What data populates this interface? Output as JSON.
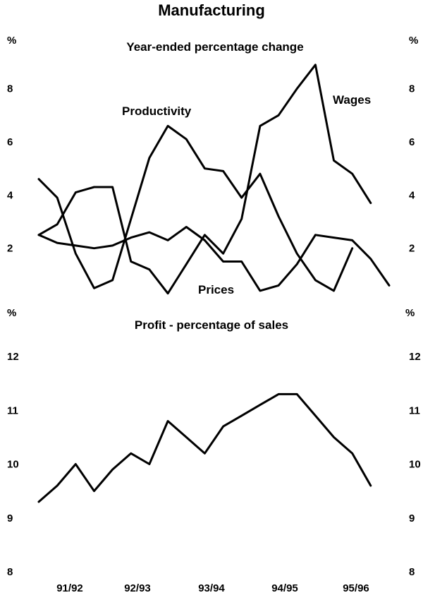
{
  "title": "Manufacturing",
  "x_tick_labels": [
    "91/92",
    "92/93",
    "93/94",
    "94/95",
    "95/96"
  ],
  "chart_data": [
    {
      "type": "line",
      "subtitle": "Year-ended percentage change",
      "unit_left": "%",
      "unit_right": "%",
      "ylim": [
        0,
        9
      ],
      "yticks": [
        2,
        4,
        6,
        8
      ],
      "x": [
        0,
        1,
        2,
        3,
        4,
        5,
        6,
        7,
        8,
        9,
        10,
        11,
        12,
        13,
        14,
        15,
        16,
        17,
        18,
        19
      ],
      "series": [
        {
          "name": "Wages",
          "values": [
            2.5,
            2.9,
            4.1,
            4.3,
            4.3,
            1.5,
            1.2,
            0.3,
            1.4,
            2.5,
            1.8,
            3.1,
            6.6,
            7.0,
            8.0,
            8.9,
            5.3,
            4.8,
            3.7,
            null
          ]
        },
        {
          "name": "Productivity",
          "values": [
            4.6,
            3.9,
            1.8,
            0.5,
            0.8,
            3.1,
            5.4,
            6.6,
            6.1,
            5.0,
            4.9,
            3.9,
            4.8,
            3.2,
            1.8,
            0.8,
            0.4,
            2.0,
            null,
            null
          ]
        },
        {
          "name": "Prices",
          "values": [
            2.5,
            2.2,
            2.1,
            2.0,
            2.1,
            2.4,
            2.6,
            2.3,
            2.8,
            2.3,
            1.5,
            1.5,
            0.4,
            0.6,
            1.4,
            2.5,
            2.4,
            2.3,
            1.6,
            0.6
          ]
        }
      ]
    },
    {
      "type": "line",
      "subtitle": "Profit - percentage of sales",
      "unit_left": "%",
      "unit_right": "%",
      "ylim": [
        8,
        12
      ],
      "yticks": [
        8,
        9,
        10,
        11,
        12
      ],
      "x": [
        0,
        1,
        2,
        3,
        4,
        5,
        6,
        7,
        8,
        9,
        10,
        11,
        12,
        13,
        14,
        15,
        16,
        17,
        18,
        19
      ],
      "series": [
        {
          "values": [
            9.3,
            9.6,
            10.0,
            9.5,
            9.9,
            10.2,
            10.0,
            10.8,
            10.5,
            10.2,
            10.7,
            10.9,
            11.1,
            11.3,
            11.3,
            10.9,
            10.5,
            10.2,
            9.6,
            null
          ]
        }
      ]
    }
  ]
}
